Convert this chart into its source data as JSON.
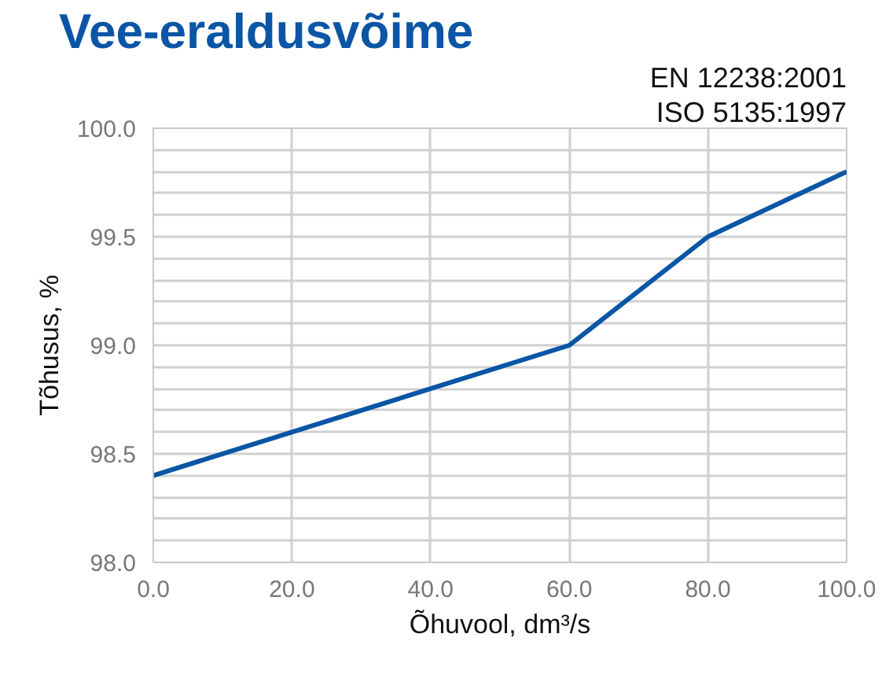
{
  "chart_data": {
    "type": "line",
    "title": "Vee-eraldusvõime",
    "xlabel": "Õhuvool, dm³/s",
    "ylabel": "Tõhusus, %",
    "annotations": [
      "EN 12238:2001",
      "ISO 5135:1997"
    ],
    "x": [
      0,
      20,
      40,
      60,
      80,
      100
    ],
    "series": [
      {
        "color": "#0a55a5",
        "values": [
          98.4,
          98.6,
          98.8,
          99.0,
          99.5,
          99.8
        ]
      }
    ],
    "xlim": [
      0,
      100
    ],
    "ylim": [
      98.0,
      100.0
    ],
    "xticks": [
      {
        "value": 0,
        "label": "0.0"
      },
      {
        "value": 20,
        "label": "20.0"
      },
      {
        "value": 40,
        "label": "40.0"
      },
      {
        "value": 60,
        "label": "60.0"
      },
      {
        "value": 80,
        "label": "80.0"
      },
      {
        "value": 100,
        "label": "100.0"
      }
    ],
    "yticks": [
      {
        "value": 98.0,
        "label": "98.0"
      },
      {
        "value": 98.1,
        "label": null
      },
      {
        "value": 98.2,
        "label": null
      },
      {
        "value": 98.3,
        "label": null
      },
      {
        "value": 98.4,
        "label": null
      },
      {
        "value": 98.5,
        "label": "98.5"
      },
      {
        "value": 98.6,
        "label": null
      },
      {
        "value": 98.7,
        "label": null
      },
      {
        "value": 98.8,
        "label": null
      },
      {
        "value": 98.9,
        "label": null
      },
      {
        "value": 99.0,
        "label": "99.0"
      },
      {
        "value": 99.1,
        "label": null
      },
      {
        "value": 99.2,
        "label": null
      },
      {
        "value": 99.3,
        "label": null
      },
      {
        "value": 99.4,
        "label": null
      },
      {
        "value": 99.5,
        "label": "99.5"
      },
      {
        "value": 99.6,
        "label": null
      },
      {
        "value": 99.7,
        "label": null
      },
      {
        "value": 99.8,
        "label": null
      },
      {
        "value": 99.9,
        "label": null
      },
      {
        "value": 100.0,
        "label": "100.0"
      }
    ],
    "grid": true,
    "marker": "none",
    "line_style": "solid"
  }
}
